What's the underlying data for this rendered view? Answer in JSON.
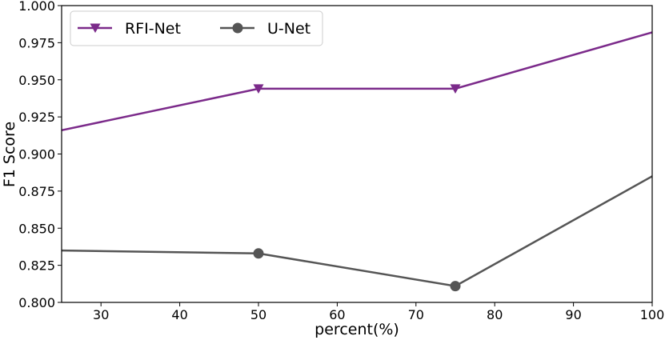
{
  "chart_data": {
    "type": "line",
    "xlabel": "percent(%)",
    "ylabel": "F1 Score",
    "xlim": [
      25,
      100
    ],
    "ylim": [
      0.8,
      1.0
    ],
    "xticks": [
      "30",
      "40",
      "50",
      "60",
      "70",
      "80",
      "90",
      "100"
    ],
    "yticks": [
      "0.800",
      "0.825",
      "0.850",
      "0.875",
      "0.900",
      "0.925",
      "0.950",
      "0.975",
      "1.000"
    ],
    "grid": false,
    "legend_position": "top-left",
    "series": [
      {
        "name": "RFI-Net",
        "color": "#7b2a8a",
        "marker": "triangle-down",
        "x": [
          25,
          50,
          75,
          100
        ],
        "y": [
          0.916,
          0.944,
          0.944,
          0.982
        ]
      },
      {
        "name": "U-Net",
        "color": "#555555",
        "marker": "circle",
        "x": [
          25,
          50,
          75,
          100
        ],
        "y": [
          0.835,
          0.833,
          0.811,
          0.885
        ]
      }
    ]
  }
}
